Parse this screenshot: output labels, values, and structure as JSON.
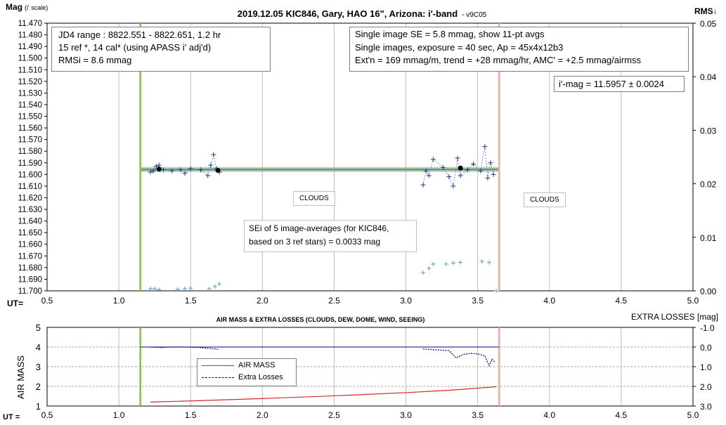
{
  "top_chart": {
    "title": "2019.12.05 KIC846, Gary, HAO 16\", Arizona: i'-band",
    "version": "- v9C05",
    "y_label": "Mag",
    "y_label_sub": "(i' scale)",
    "y2_label": "RMS",
    "y2_label_sub": "i",
    "x_label": "UT=",
    "info_left": [
      "JD4 range : 8822.551 - 8822.651, 1.2  hr",
      "15 ref *, 14 cal* (using APASS i' adj'd)",
      "RMSi = 8.6 mmag"
    ],
    "info_right": [
      "Single image SE = 5.8 mmag, show 11-pt avgs",
      "Single images, exposure = 40 sec, Ap = 45x4x12b3",
      "Ext'n = 169 mmag/m, trend = +28 mmag/hr, AMC' = +2.5 mmag/airmss"
    ],
    "imag_box": "i'-mag = 11.5957 ± 0.0024",
    "sei_box": [
      "SEi of 5 image-averages (for KIC846,",
      "based on 3 ref stars) = 0.0033 mag"
    ],
    "clouds_left": "CLOUDS",
    "clouds_right": "CLOUDS"
  },
  "bottom_chart": {
    "title": "AIR MASS & EXTRA LOSSES (CLOUDS, DEW, DOME, WIND, SEEING)",
    "y_label": "AIR MASS",
    "y2_label": "EXTRA LOSSES [mag]",
    "x_label": "UT =",
    "legend": [
      "AIR MASS",
      "Extra Losses"
    ]
  },
  "colors": {
    "mag_points": "#1f3c88",
    "avg_points": "#000000",
    "rms_points": "#5b9bbd",
    "fit_line": "#5aa469",
    "start_line": "#8cbf3f",
    "end_line": "#f4a6a6",
    "airmass": "#d62728",
    "extra_losses": "#00008b"
  },
  "chart_data": [
    {
      "type": "scatter",
      "title": "2019.12.05 KIC846, Gary, HAO 16\", Arizona: i'-band",
      "xlabel": "UT=",
      "ylabel": "Mag (i' scale)",
      "y2label": "RMS i",
      "xlim": [
        0.5,
        5.0
      ],
      "ylim": [
        11.7,
        11.47
      ],
      "y2lim": [
        0.0,
        0.05
      ],
      "x_ticks": [
        "0.5",
        "1.0",
        "1.5",
        "2.0",
        "2.5",
        "3.0",
        "3.5",
        "4.0",
        "4.5",
        "5.0"
      ],
      "y_ticks": [
        "11.470",
        "11.480",
        "11.490",
        "11.500",
        "11.510",
        "11.520",
        "11.530",
        "11.540",
        "11.550",
        "11.560",
        "11.570",
        "11.580",
        "11.590",
        "11.600",
        "11.610",
        "11.620",
        "11.630",
        "11.640",
        "11.650",
        "11.660",
        "11.670",
        "11.680",
        "11.690",
        "11.700"
      ],
      "y2_ticks": [
        "0.00",
        "0.01",
        "0.02",
        "0.03",
        "0.04",
        "0.05"
      ],
      "vertical_markers_ut": [
        1.15,
        3.65
      ],
      "fit_mag": 11.5957,
      "fit_range_ut": [
        1.15,
        3.65
      ],
      "series": [
        {
          "values": [
            [
              1.22,
              11.598
            ],
            [
              1.24,
              11.597
            ],
            [
              1.26,
              11.593
            ],
            [
              1.28,
              11.592
            ],
            [
              1.31,
              11.596
            ],
            [
              1.37,
              11.597
            ],
            [
              1.43,
              11.596
            ],
            [
              1.46,
              11.599
            ],
            [
              1.5,
              11.595
            ],
            [
              1.57,
              11.596
            ],
            [
              1.62,
              11.601
            ],
            [
              1.64,
              11.592
            ],
            [
              1.66,
              11.583
            ],
            [
              1.68,
              11.595
            ],
            [
              1.7,
              11.598
            ],
            [
              3.12,
              11.609
            ],
            [
              3.14,
              11.597
            ],
            [
              3.16,
              11.601
            ],
            [
              3.19,
              11.587
            ],
            [
              3.26,
              11.594
            ],
            [
              3.3,
              11.602
            ],
            [
              3.33,
              11.61
            ],
            [
              3.36,
              11.586
            ],
            [
              3.38,
              11.601
            ],
            [
              3.43,
              11.596
            ],
            [
              3.47,
              11.591
            ],
            [
              3.52,
              11.597
            ],
            [
              3.55,
              11.576
            ],
            [
              3.57,
              11.603
            ],
            [
              3.59,
              11.59
            ],
            [
              3.61,
              11.6
            ]
          ]
        },
        {
          "values": [
            [
              1.28,
              11.5955
            ],
            [
              1.69,
              11.5965
            ],
            [
              3.38,
              11.5945
            ]
          ]
        },
        {
          "values": [
            [
              1.22,
              0.0004
            ],
            [
              1.25,
              0.0004
            ],
            [
              1.28,
              0.0002
            ],
            [
              1.41,
              0.0003
            ],
            [
              1.46,
              0.0004
            ],
            [
              1.5,
              0.0005
            ],
            [
              1.63,
              0.0004
            ],
            [
              1.67,
              0.0008
            ],
            [
              1.7,
              0.0013
            ],
            [
              3.12,
              0.0034
            ],
            [
              3.16,
              0.0042
            ],
            [
              3.19,
              0.005
            ],
            [
              3.28,
              0.005
            ],
            [
              3.33,
              0.0052
            ],
            [
              3.38,
              0.0053
            ],
            [
              3.53,
              0.0055
            ],
            [
              3.58,
              0.0053
            ],
            [
              3.63,
              0.0
            ]
          ]
        }
      ]
    },
    {
      "type": "line",
      "title": "AIR MASS & EXTRA LOSSES (CLOUDS, DEW, DOME, WIND, SEEING)",
      "xlabel": "UT =",
      "ylabel": "AIR MASS",
      "y2label": "EXTRA LOSSES [mag]",
      "xlim": [
        0.5,
        5.0
      ],
      "ylim": [
        1,
        5
      ],
      "y2lim": [
        3.0,
        -1.0
      ],
      "x_ticks": [
        "0.5",
        "1.0",
        "1.5",
        "2.0",
        "2.5",
        "3.0",
        "3.5",
        "4.0",
        "4.5",
        "5.0"
      ],
      "y_ticks": [
        "1",
        "2",
        "3",
        "4",
        "5"
      ],
      "y2_ticks": [
        "-1.0",
        "0.0",
        "1.0",
        "2.0",
        "3.0"
      ],
      "vertical_markers_ut": [
        1.15,
        3.65
      ],
      "baseline_loss": 0.0,
      "series": [
        {
          "name": "AIR MASS",
          "values": [
            [
              1.22,
              1.2
            ],
            [
              1.5,
              1.26
            ],
            [
              2.0,
              1.38
            ],
            [
              2.5,
              1.52
            ],
            [
              3.0,
              1.68
            ],
            [
              3.3,
              1.8
            ],
            [
              3.63,
              1.98
            ]
          ]
        },
        {
          "name": "Extra Losses",
          "values": [
            [
              1.22,
              0.0
            ],
            [
              1.3,
              0.03
            ],
            [
              1.35,
              0.0
            ],
            [
              1.45,
              0.0
            ],
            [
              1.55,
              0.02
            ],
            [
              1.6,
              0.05
            ],
            [
              1.65,
              0.08
            ],
            [
              1.7,
              0.12
            ],
            [
              3.12,
              0.1
            ],
            [
              3.2,
              0.14
            ],
            [
              3.3,
              0.18
            ],
            [
              3.35,
              0.55
            ],
            [
              3.4,
              0.38
            ],
            [
              3.45,
              0.32
            ],
            [
              3.5,
              0.35
            ],
            [
              3.55,
              0.45
            ],
            [
              3.58,
              0.95
            ],
            [
              3.6,
              0.62
            ],
            [
              3.62,
              0.78
            ]
          ]
        }
      ]
    }
  ]
}
